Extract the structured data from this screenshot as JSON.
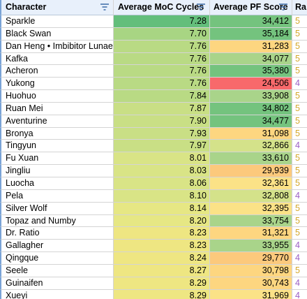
{
  "header": {
    "character": "Character",
    "moc": "Average MoC Cycles",
    "pf": "Average PF Score",
    "ra": "Ra"
  },
  "colors": {
    "moc_best": "#63be7b",
    "moc_worst": "#eee682",
    "pf_high": "#74c37e",
    "pf_mid": "#fbe287",
    "pf_low": "#f8696b",
    "rarity5": "#d4a72c",
    "rarity4": "#9c5fc6"
  },
  "rows": [
    {
      "name": "Sparkle",
      "moc": "7.28",
      "pf": "34,412",
      "ra": "5"
    },
    {
      "name": "Black Swan",
      "moc": "7.70",
      "pf": "35,184",
      "ra": "5"
    },
    {
      "name": "Dan Heng • Imbibitor Lunae",
      "moc": "7.76",
      "pf": "31,283",
      "ra": "5"
    },
    {
      "name": "Kafka",
      "moc": "7.76",
      "pf": "34,077",
      "ra": "5"
    },
    {
      "name": "Acheron",
      "moc": "7.76",
      "pf": "35,380",
      "ra": "5"
    },
    {
      "name": "Yukong",
      "moc": "7.76",
      "pf": "24,506",
      "ra": "4"
    },
    {
      "name": "Huohuo",
      "moc": "7.84",
      "pf": "33,908",
      "ra": "5"
    },
    {
      "name": "Ruan Mei",
      "moc": "7.87",
      "pf": "34,802",
      "ra": "5"
    },
    {
      "name": "Aventurine",
      "moc": "7.90",
      "pf": "34,477",
      "ra": "5"
    },
    {
      "name": "Bronya",
      "moc": "7.93",
      "pf": "31,098",
      "ra": "5"
    },
    {
      "name": "Tingyun",
      "moc": "7.97",
      "pf": "32,866",
      "ra": "4"
    },
    {
      "name": "Fu Xuan",
      "moc": "8.01",
      "pf": "33,610",
      "ra": "5"
    },
    {
      "name": "Jingliu",
      "moc": "8.03",
      "pf": "29,939",
      "ra": "5"
    },
    {
      "name": "Luocha",
      "moc": "8.06",
      "pf": "32,361",
      "ra": "5"
    },
    {
      "name": "Pela",
      "moc": "8.10",
      "pf": "32,808",
      "ra": "4"
    },
    {
      "name": "Silver Wolf",
      "moc": "8.14",
      "pf": "32,395",
      "ra": "5"
    },
    {
      "name": "Topaz and Numby",
      "moc": "8.20",
      "pf": "33,754",
      "ra": "5"
    },
    {
      "name": "Dr. Ratio",
      "moc": "8.23",
      "pf": "31,321",
      "ra": "5"
    },
    {
      "name": "Gallagher",
      "moc": "8.23",
      "pf": "33,955",
      "ra": "4"
    },
    {
      "name": "Qingque",
      "moc": "8.24",
      "pf": "29,770",
      "ra": "4"
    },
    {
      "name": "Seele",
      "moc": "8.27",
      "pf": "30,798",
      "ra": "5"
    },
    {
      "name": "Guinaifen",
      "moc": "8.29",
      "pf": "30,743",
      "ra": "4"
    },
    {
      "name": "Xueyi",
      "moc": "8.29",
      "pf": "31,969",
      "ra": "4"
    }
  ]
}
